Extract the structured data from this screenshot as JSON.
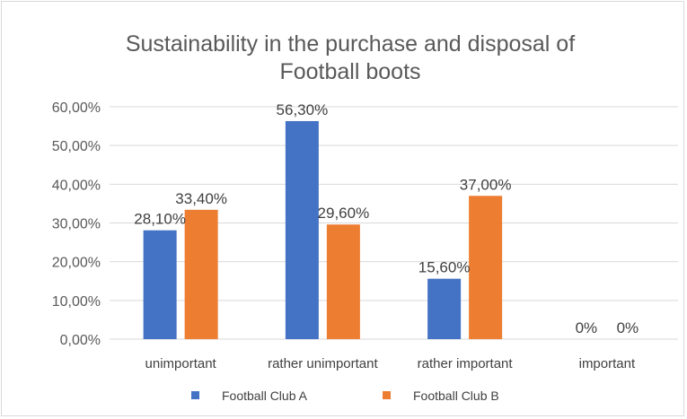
{
  "chart_data": {
    "type": "bar",
    "title_lines": [
      "Sustainability in the purchase and disposal of",
      "Football boots"
    ],
    "categories": [
      "unimportant",
      "rather  unimportant",
      "rather  important",
      "important"
    ],
    "series": [
      {
        "name": "Football Club A",
        "color": "#4472c4",
        "values": [
          28.1,
          56.3,
          15.6,
          0
        ],
        "labels": [
          "28,10%",
          "56,30%",
          "15,60%",
          "0%"
        ]
      },
      {
        "name": "Football Club B",
        "color": "#ed7d31",
        "values": [
          33.4,
          29.6,
          37.0,
          0
        ],
        "labels": [
          "33,40%",
          "29,60%",
          "37,00%",
          "0%"
        ]
      }
    ],
    "y_ticks": [
      0,
      10,
      20,
      30,
      40,
      50,
      60
    ],
    "y_tick_labels": [
      "0,00%",
      "10,00%",
      "20,00%",
      "30,00%",
      "40,00%",
      "50,00%",
      "60,00%"
    ],
    "ylim": [
      0,
      60
    ],
    "grid": true,
    "legend_position": "bottom"
  }
}
